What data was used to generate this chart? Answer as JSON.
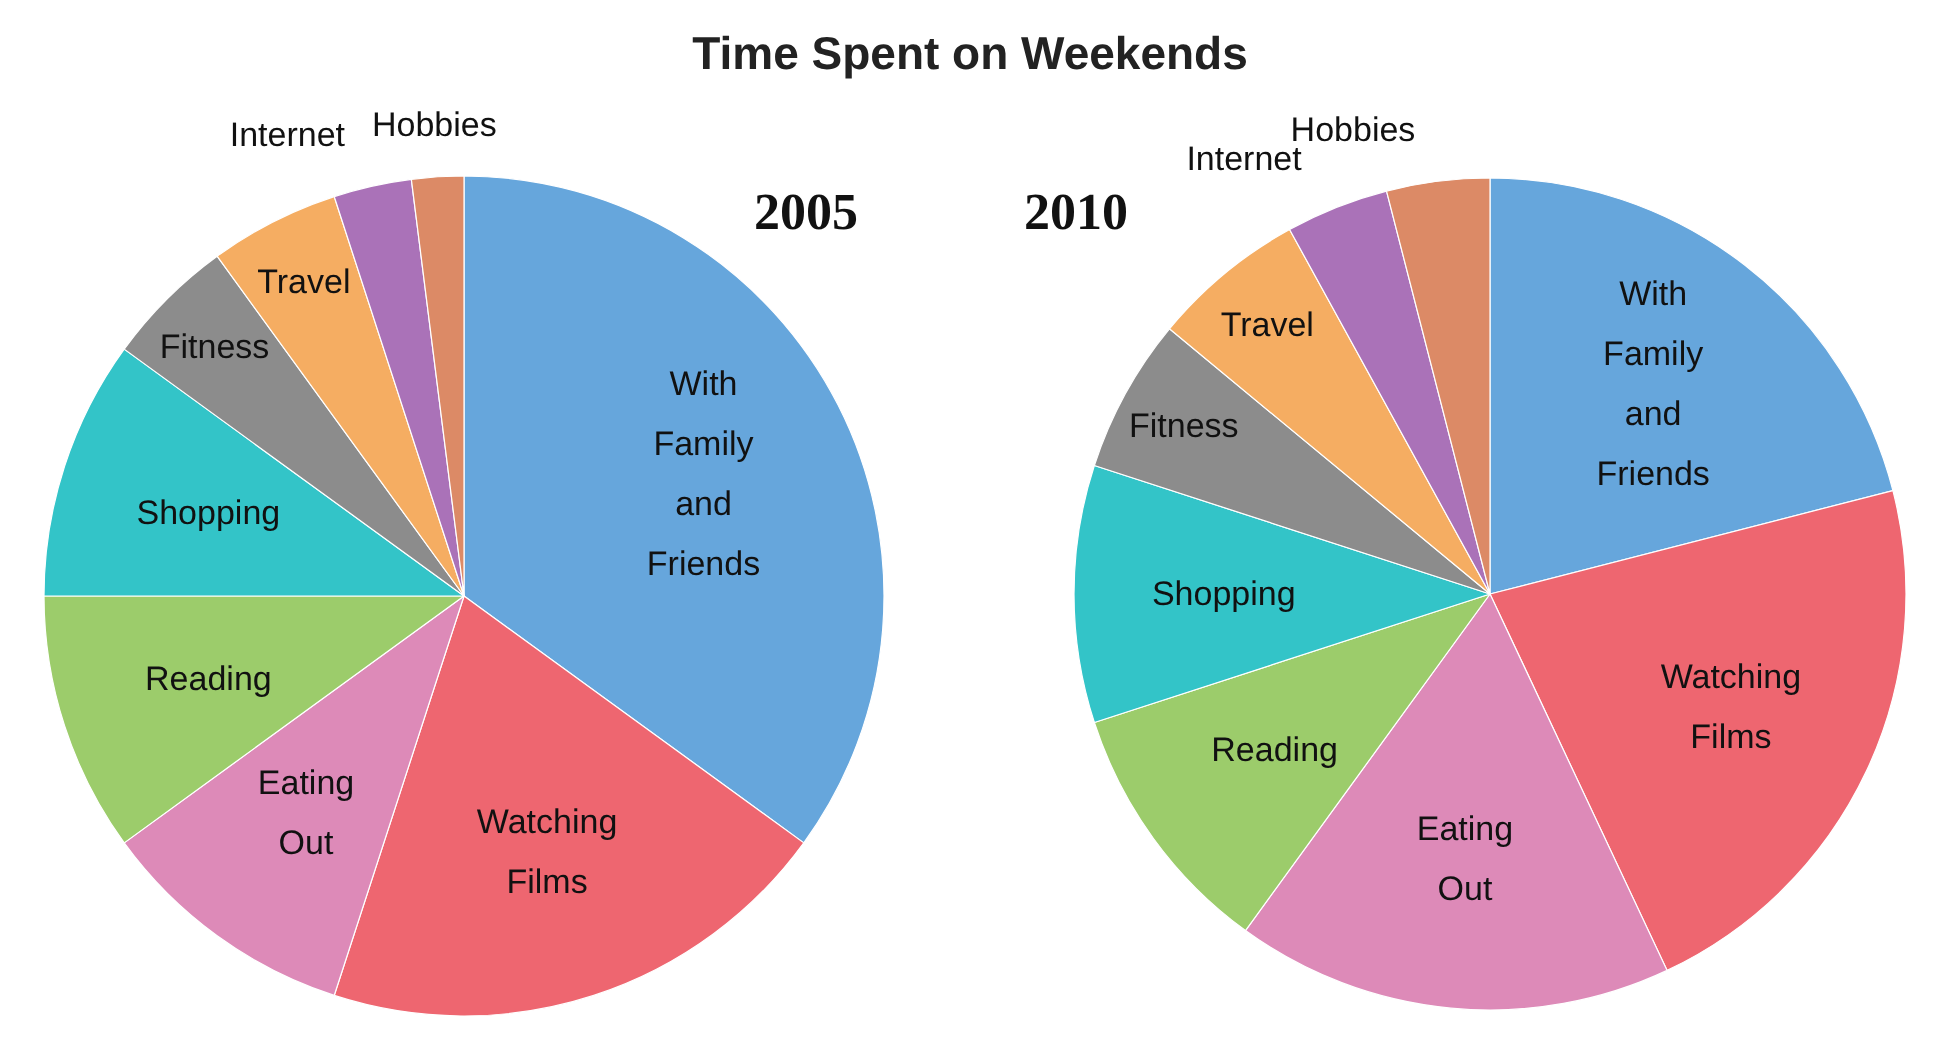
{
  "chart_data": [
    {
      "type": "pie",
      "title": "Time Spent on Weekends",
      "subtitle": "2005",
      "categories": [
        "With Family and Friends",
        "Watching Films",
        "Eating Out",
        "Reading",
        "Shopping",
        "Fitness",
        "Travel",
        "Internet",
        "Hobbies"
      ],
      "values": [
        35,
        20,
        10,
        10,
        10,
        5,
        5,
        3,
        2
      ],
      "colors": [
        "#66a6dc",
        "#ee6670",
        "#dd8ab8",
        "#9ccc6b",
        "#33c4c8",
        "#8c8c8c",
        "#f5ad62",
        "#aa72b8",
        "#dc8a66"
      ]
    },
    {
      "type": "pie",
      "subtitle": "2010",
      "categories": [
        "With Family and Friends",
        "Watching Films",
        "Eating Out",
        "Reading",
        "Shopping",
        "Fitness",
        "Travel",
        "Internet",
        "Hobbies"
      ],
      "values": [
        21,
        22,
        17,
        10,
        10,
        6,
        6,
        4,
        4
      ],
      "colors": [
        "#66a6dc",
        "#ee6670",
        "#dd8ab8",
        "#9ccc6b",
        "#33c4c8",
        "#8c8c8c",
        "#f5ad62",
        "#aa72b8",
        "#dc8a66"
      ]
    }
  ]
}
